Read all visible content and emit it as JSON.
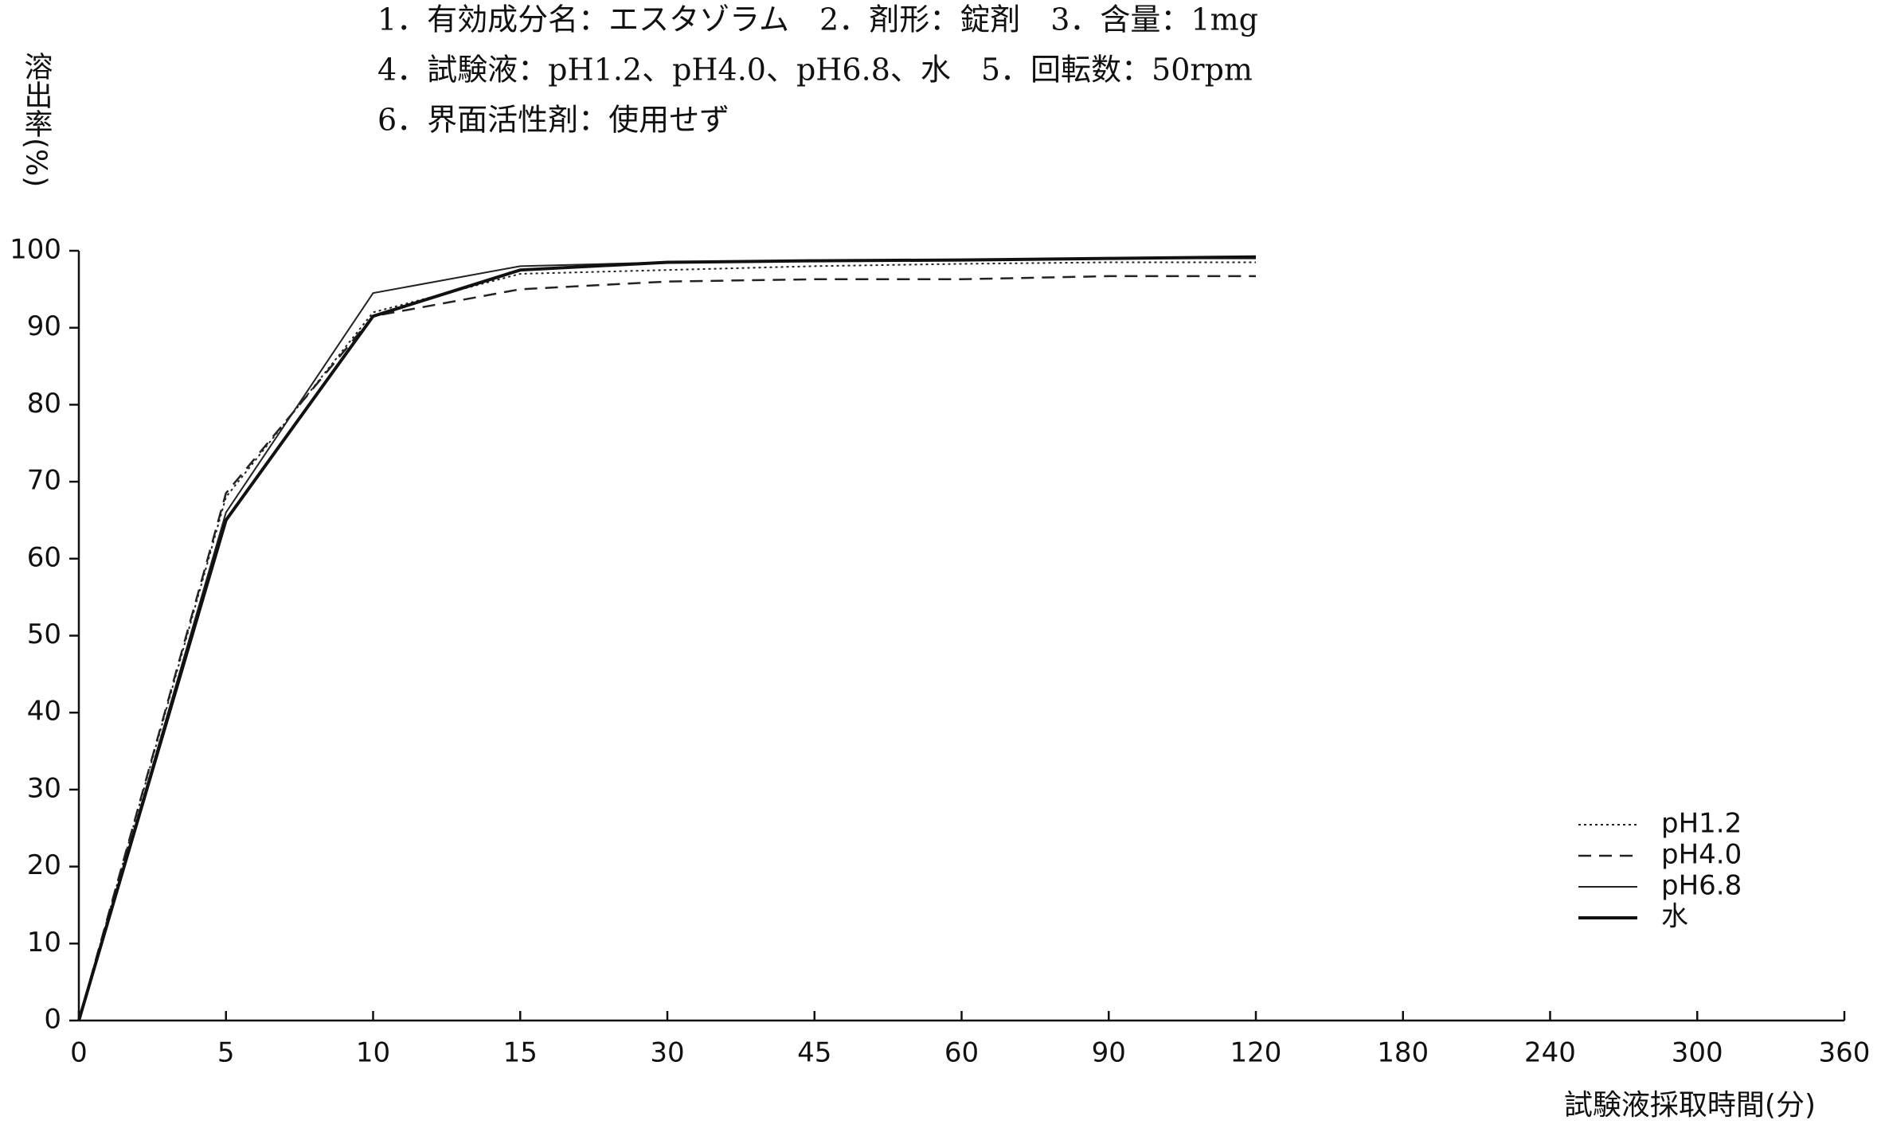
{
  "chart_data": {
    "type": "line",
    "header": [
      "1．有効成分名：エスタゾラム　2．剤形：錠剤　3．含量：1mg",
      "4．試験液：pH1.2、pH4.0、pH6.8、水　5．回転数：50rpm",
      "6．界面活性剤：使用せず"
    ],
    "y_label": "溶出率(%)",
    "x_label": "試験液採取時間(分)",
    "categories": [
      "0",
      "5",
      "10",
      "15",
      "30",
      "45",
      "60",
      "90",
      "120",
      "180",
      "240",
      "300",
      "360"
    ],
    "series": [
      {
        "name": "pH1.2",
        "color": "#222222",
        "line_style": "dotted",
        "values": [
          0,
          68,
          92,
          97,
          97.5,
          98,
          98.3,
          98.5,
          98.5,
          null,
          null,
          null,
          null
        ]
      },
      {
        "name": "pH4.0",
        "color": "#222222",
        "line_style": "dashed",
        "values": [
          0,
          68.5,
          91.5,
          95,
          96,
          96.3,
          96.3,
          96.7,
          96.7,
          null,
          null,
          null,
          null
        ]
      },
      {
        "name": "pH6.8",
        "color": "#222222",
        "line_style": "solid",
        "values": [
          0,
          66,
          94.5,
          98,
          98.5,
          98.7,
          98.8,
          99,
          99,
          null,
          null,
          null,
          null
        ]
      },
      {
        "name": "水",
        "color": "#111111",
        "line_style": "bold",
        "values": [
          0,
          65,
          91.5,
          97.5,
          98.5,
          98.7,
          98.8,
          99,
          99.2,
          null,
          null,
          null,
          null
        ]
      }
    ],
    "ylim": [
      0,
      100
    ],
    "yticks": [
      0,
      10,
      20,
      30,
      40,
      50,
      60,
      70,
      80,
      90,
      100
    ],
    "legend": "lower-right"
  }
}
